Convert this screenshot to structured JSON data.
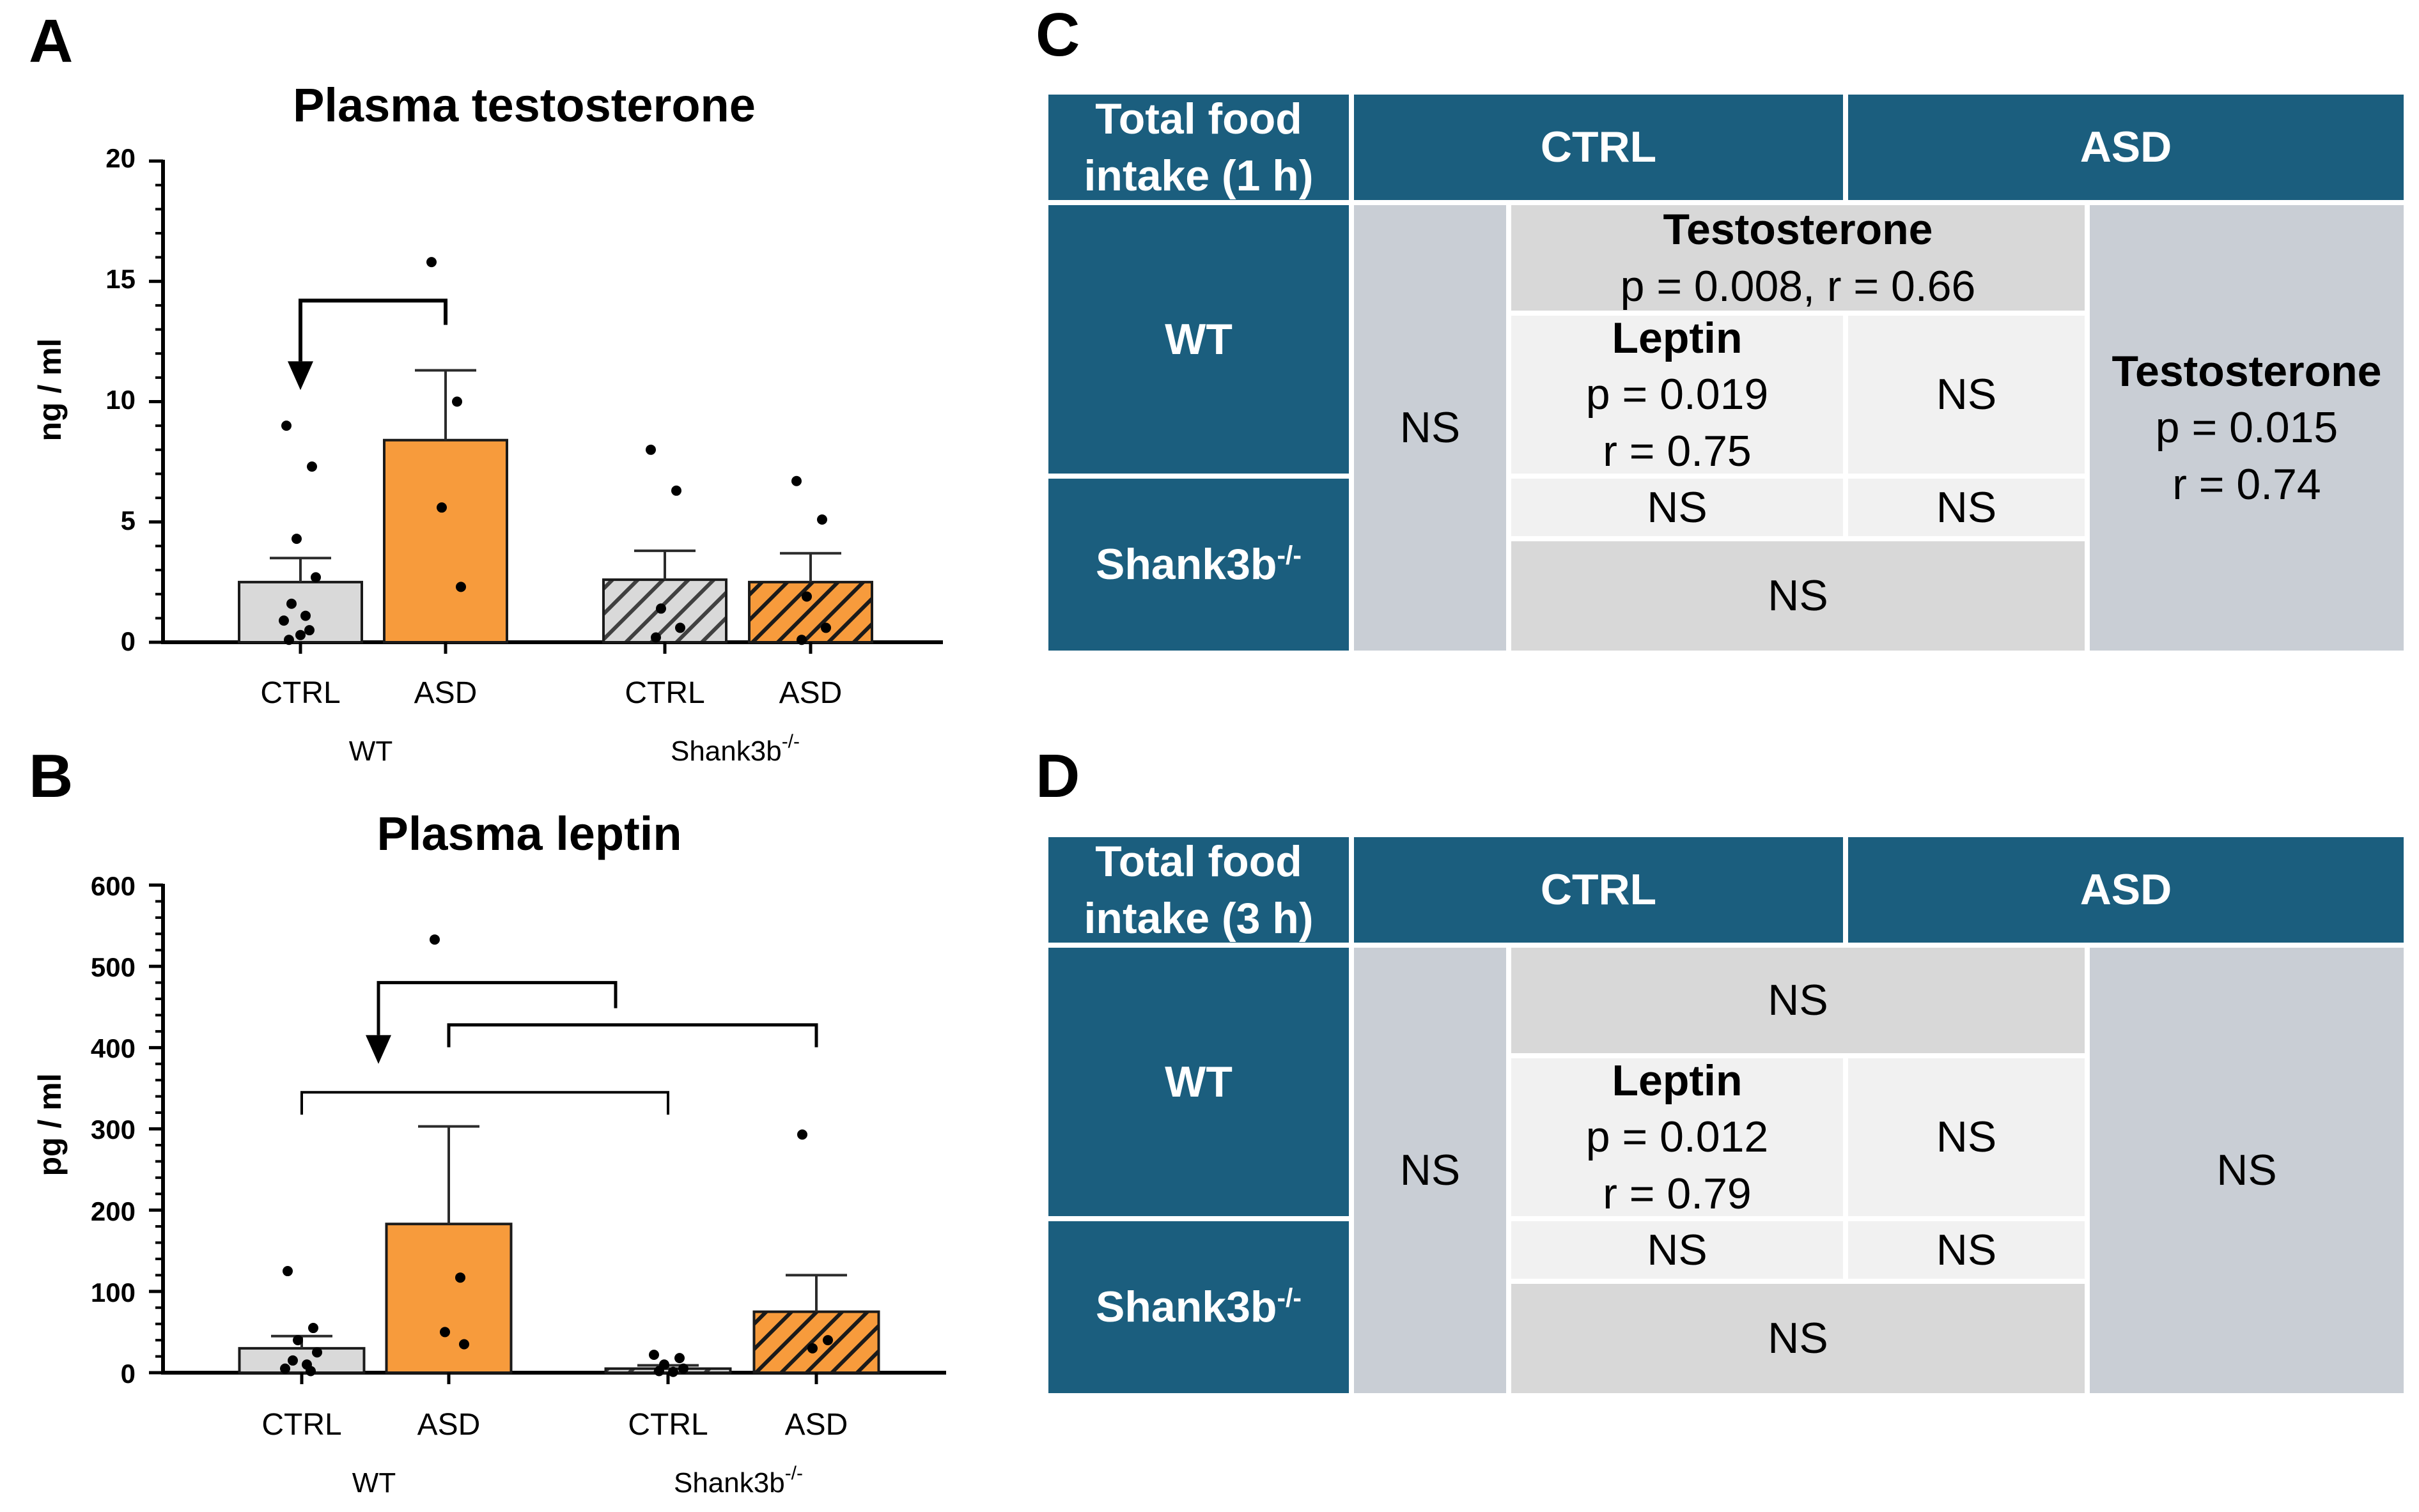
{
  "panels": {
    "a": "A",
    "b": "B",
    "c": "C",
    "d": "D"
  },
  "colors": {
    "ctrl": "#d9d9d9",
    "asd": "#f79b3c",
    "header": "#1b5e7e",
    "grey_cell": "#c9ced5"
  },
  "chart_data": [
    {
      "id": "A",
      "type": "bar",
      "title": "Plasma testosterone",
      "ylabel": "ng / ml",
      "ylim": [
        0,
        20
      ],
      "yticks": [
        0,
        5,
        10,
        15,
        20
      ],
      "categories": [
        "CTRL",
        "ASD",
        "CTRL",
        "ASD"
      ],
      "groups": [
        {
          "label": "WT",
          "sup": ""
        },
        {
          "label": "Shank3b",
          "sup": "-/-"
        }
      ],
      "values": [
        2.5,
        8.4,
        2.6,
        2.5
      ],
      "errors": [
        1.0,
        2.9,
        1.2,
        1.2
      ],
      "points": [
        [
          9.0,
          7.3,
          4.3,
          2.7,
          1.6,
          1.1,
          0.9,
          0.5,
          0.3,
          0.1
        ],
        [
          15.8,
          10.0,
          5.6,
          2.3
        ],
        [
          8.0,
          6.3,
          1.4,
          0.6,
          0.2
        ],
        [
          6.7,
          5.1,
          1.9,
          0.6,
          0.1
        ]
      ],
      "significance": [
        {
          "from": 1,
          "to": 0,
          "level": 14.2,
          "arrow": true
        }
      ]
    },
    {
      "id": "B",
      "type": "bar",
      "title": "Plasma leptin",
      "ylabel": "pg / ml",
      "ylim": [
        0,
        600
      ],
      "yticks": [
        0,
        100,
        200,
        300,
        400,
        500,
        600
      ],
      "categories": [
        "CTRL",
        "ASD",
        "CTRL",
        "ASD"
      ],
      "groups": [
        {
          "label": "WT",
          "sup": ""
        },
        {
          "label": "Shank3b",
          "sup": "-/-"
        }
      ],
      "values": [
        30,
        183,
        5,
        75
      ],
      "errors": [
        15,
        120,
        4,
        45
      ],
      "points": [
        [
          125,
          55,
          40,
          25,
          15,
          10,
          5,
          2
        ],
        [
          533,
          117,
          50,
          35
        ],
        [
          22,
          18,
          10,
          5,
          2,
          1
        ],
        [
          293,
          40,
          30
        ]
      ],
      "significance": [
        {
          "from": 1.0,
          "to": 2.0,
          "level": 480,
          "arrow": true,
          "arrowAt": 1,
          "arrowTo": 380
        },
        {
          "from": 1.0,
          "to": 3.0,
          "level": 428,
          "arrow": false
        },
        {
          "from": 0.0,
          "to": 2.0,
          "level": 345,
          "arrow": false
        }
      ]
    }
  ],
  "table_c": {
    "corner_line1": "Total food",
    "corner_line2": "intake (1 h)",
    "col_ctrl": "CTRL",
    "col_asd": "ASD",
    "row_wt": "WT",
    "row_shank": "Shank3b",
    "row_shank_sup": "-/-",
    "ctrl_vertical": "NS",
    "testo_title": "Testosterone",
    "testo_stats": "p = 0.008, r = 0.66",
    "leptin_title": "Leptin",
    "leptin_p": "p = 0.019",
    "leptin_r": "r = 0.75",
    "wt_asd_leptin": "NS",
    "shank_ctrl_leptin": "NS",
    "shank_asd_leptin": "NS",
    "shank_testo": "NS",
    "asd_title": "Testosterone",
    "asd_p": "p = 0.015",
    "asd_r": "r = 0.74"
  },
  "table_d": {
    "corner_line1": "Total food",
    "corner_line2": "intake (3 h)",
    "col_ctrl": "CTRL",
    "col_asd": "ASD",
    "row_wt": "WT",
    "row_shank": "Shank3b",
    "row_shank_sup": "-/-",
    "ctrl_vertical": "NS",
    "wt_testo": "NS",
    "leptin_title": "Leptin",
    "leptin_p": "p = 0.012",
    "leptin_r": "r = 0.79",
    "wt_asd_leptin": "NS",
    "shank_ctrl_leptin": "NS",
    "shank_asd_leptin": "NS",
    "shank_testo": "NS",
    "asd_vertical": "NS"
  }
}
